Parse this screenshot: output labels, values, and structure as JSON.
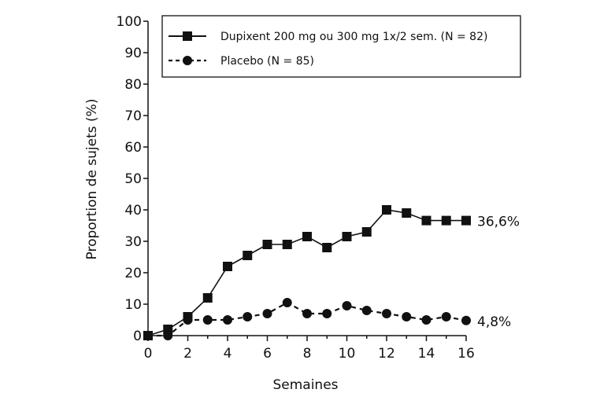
{
  "chart_data": {
    "type": "line",
    "x": [
      0,
      1,
      2,
      3,
      4,
      5,
      6,
      7,
      8,
      9,
      10,
      11,
      12,
      13,
      14,
      15,
      16
    ],
    "xticks": [
      0,
      2,
      4,
      6,
      8,
      10,
      12,
      14,
      16
    ],
    "yticks": [
      0,
      10,
      20,
      30,
      40,
      50,
      60,
      70,
      80,
      90,
      100
    ],
    "xlabel": "Semaines",
    "ylabel": "Proportion de sujets (%)",
    "xlim": [
      0,
      16
    ],
    "ylim": [
      0,
      100
    ],
    "grid": false,
    "legend_position": "top-right",
    "series": [
      {
        "name": "Dupixent 200 mg ou 300 mg 1x/2 sem. (N = 82)",
        "marker": "square",
        "line_style": "solid",
        "values": [
          0,
          2,
          6,
          12,
          22,
          25.5,
          29,
          29,
          31.5,
          28,
          31.5,
          33,
          40,
          39,
          36.6,
          36.6,
          36.6
        ],
        "end_label": "36,6%"
      },
      {
        "name": "Placebo (N = 85)",
        "marker": "circle",
        "line_style": "dashed",
        "values": [
          0,
          0,
          5,
          5,
          5,
          6,
          7,
          10.5,
          7,
          7,
          9.5,
          8,
          7,
          6,
          5,
          6,
          4.8
        ],
        "end_label": "4,8%"
      }
    ],
    "colors": {
      "line": "#111111",
      "axis": "#111111",
      "background": "#ffffff"
    }
  }
}
